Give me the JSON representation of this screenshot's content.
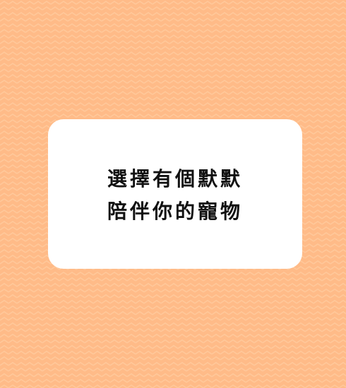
{
  "colors": {
    "background": "#ffbb88",
    "pattern_stroke": "#ffc89a",
    "card_background": "#ffffff",
    "text": "#111111"
  },
  "card": {
    "line1": "選擇有個默默",
    "line2": "陪伴你的寵物"
  }
}
